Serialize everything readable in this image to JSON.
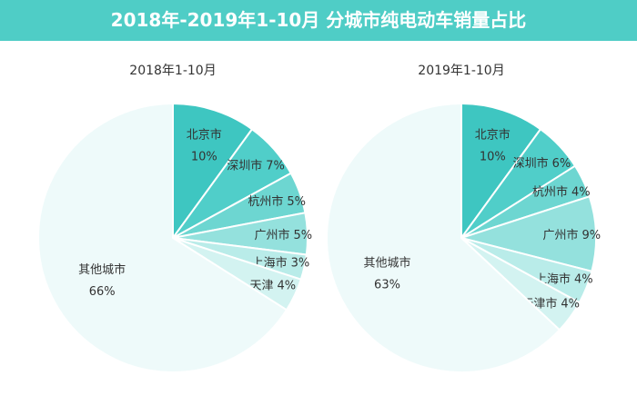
{
  "title": "2018年-2019年1-10月 分城市纯电动车销量占比",
  "colors": [
    "#3ec6c1",
    "#50cec9",
    "#6dd6d1",
    "#94e1dd",
    "#b9ece9",
    "#d3f3f1",
    "#eefafa"
  ],
  "chart_data": [
    {
      "type": "pie",
      "title": "2018年1-10月",
      "categories": [
        "北京市",
        "深圳市",
        "杭州市",
        "广州市",
        "上海市",
        "天津",
        "其他城市"
      ],
      "values": [
        10,
        7,
        5,
        5,
        3,
        4,
        66
      ],
      "labels": [
        "10%",
        "7%",
        "5%",
        "5%",
        "3%",
        "4%",
        "66%"
      ]
    },
    {
      "type": "pie",
      "title": "2019年1-10月",
      "categories": [
        "北京市",
        "深圳市",
        "杭州市",
        "广州市",
        "上海市",
        "天津市",
        "其他城市"
      ],
      "values": [
        10,
        6,
        4,
        9,
        4,
        4,
        63
      ],
      "labels": [
        "10%",
        "6%",
        "4%",
        "9%",
        "4%",
        "4%",
        "63%"
      ]
    }
  ]
}
